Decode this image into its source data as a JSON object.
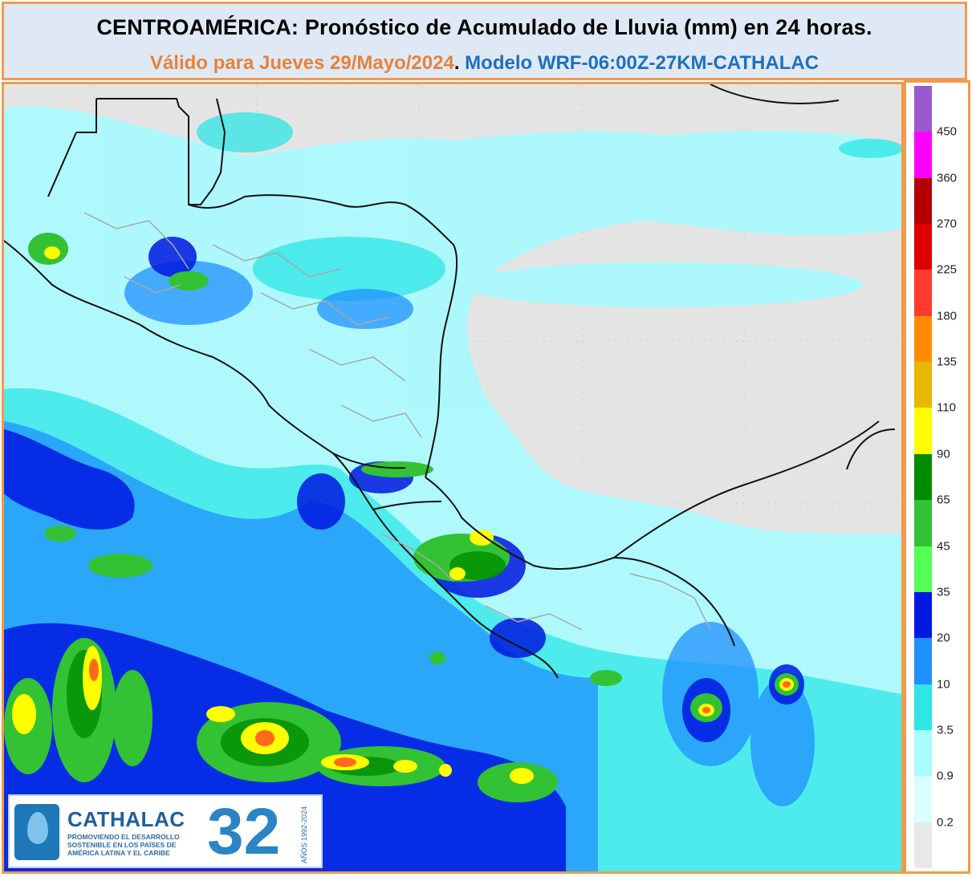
{
  "header": {
    "title": "CENTROAMÉRICA: Pronóstico de Acumulado de Lluvia (mm) en 24 horas.",
    "valid": "Válido para Jueves 29/Mayo/2024",
    "separator": ".",
    "model": " Modelo WRF-06:00Z-27KM-CATHALAC"
  },
  "colors": {
    "frame_border": "#f29a4c",
    "header_bg": "#dfe9f5",
    "valid_text": "#e6823a",
    "model_text": "#1f6fbf"
  },
  "legend": {
    "unit": "mm",
    "levels": [
      {
        "label": "450",
        "color": "#9b59d0"
      },
      {
        "label": "360",
        "color": "#ff00ff"
      },
      {
        "label": "270",
        "color": "#b40000"
      },
      {
        "label": "225",
        "color": "#e00000"
      },
      {
        "label": "180",
        "color": "#ff3b2f"
      },
      {
        "label": "135",
        "color": "#ff8c00"
      },
      {
        "label": "110",
        "color": "#e6b800"
      },
      {
        "label": "90",
        "color": "#ffff00"
      },
      {
        "label": "65",
        "color": "#008c00"
      },
      {
        "label": "45",
        "color": "#33c233"
      },
      {
        "label": "35",
        "color": "#55ff55"
      },
      {
        "label": "20",
        "color": "#0018e0"
      },
      {
        "label": "10",
        "color": "#2090ff"
      },
      {
        "label": "3.5",
        "color": "#2ee6e6"
      },
      {
        "label": "0.9",
        "color": "#a8fbff"
      },
      {
        "label": "0.2",
        "color": "#d9ffff"
      },
      {
        "label": "",
        "color": "#e8e8e8"
      }
    ]
  },
  "logo": {
    "brand": "CATHALAC",
    "tagline": "PROMOVIENDO EL DESARROLLO SOSTENIBLE EN LOS PAÍSES DE AMÉRICA LATINA Y EL CARIBE",
    "number": "32",
    "years": "AÑOS 1992-2024",
    "side": "CATHALAC"
  }
}
